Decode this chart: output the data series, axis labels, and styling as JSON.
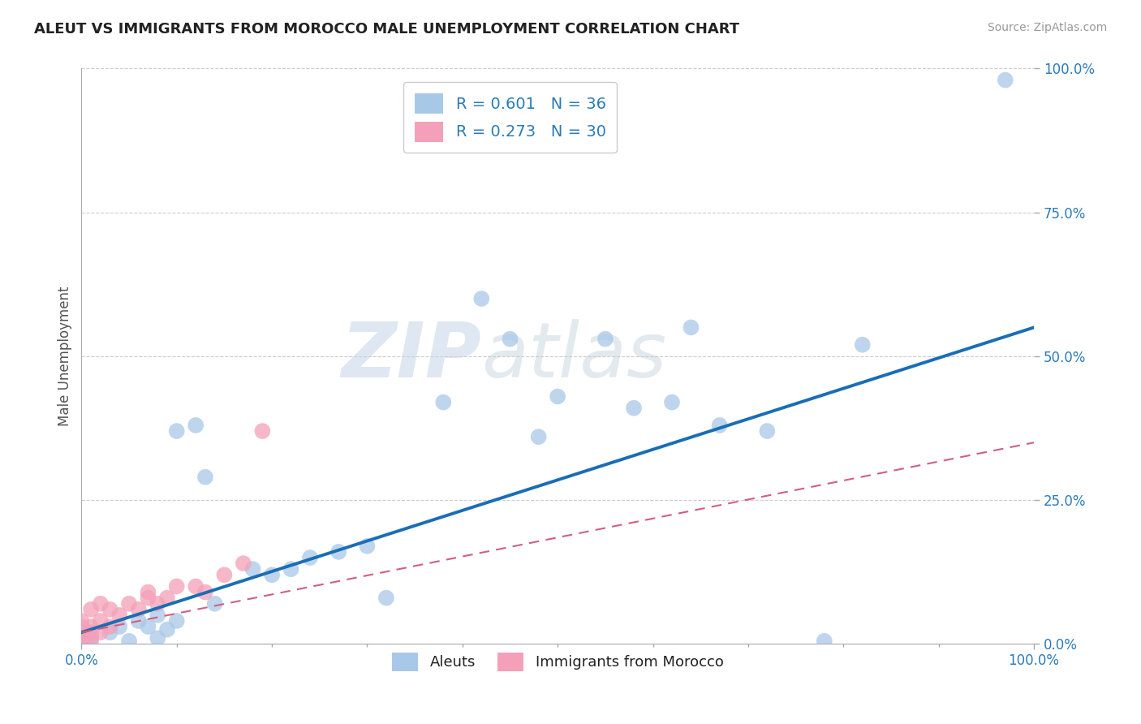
{
  "title": "ALEUT VS IMMIGRANTS FROM MOROCCO MALE UNEMPLOYMENT CORRELATION CHART",
  "source": "Source: ZipAtlas.com",
  "ylabel": "Male Unemployment",
  "xlim": [
    0,
    1.0
  ],
  "ylim": [
    0,
    1.0
  ],
  "ytick_positions": [
    0.0,
    0.25,
    0.5,
    0.75,
    1.0
  ],
  "ytick_labels": [
    "0.0%",
    "25.0%",
    "50.0%",
    "75.0%",
    "100.0%"
  ],
  "grid_color": "#cccccc",
  "background_color": "#ffffff",
  "watermark_zip": "ZIP",
  "watermark_atlas": "atlas",
  "legend1_color": "#a8c8e8",
  "legend2_color": "#f4a0b8",
  "trendline1_color": "#1a6db5",
  "trendline2_color": "#d06080",
  "bottom_legend1": "Aleuts",
  "bottom_legend2": "Immigrants from Morocco",
  "legend1_label": "R = 0.601   N = 36",
  "legend2_label": "R = 0.273   N = 30",
  "aleuts_x": [
    0.01,
    0.01,
    0.03,
    0.04,
    0.05,
    0.06,
    0.07,
    0.08,
    0.08,
    0.09,
    0.1,
    0.1,
    0.12,
    0.13,
    0.14,
    0.18,
    0.2,
    0.22,
    0.24,
    0.27,
    0.3,
    0.32,
    0.38,
    0.42,
    0.45,
    0.48,
    0.5,
    0.55,
    0.58,
    0.62,
    0.64,
    0.67,
    0.72,
    0.78,
    0.82,
    0.97
  ],
  "aleuts_y": [
    0.005,
    0.01,
    0.02,
    0.03,
    0.005,
    0.04,
    0.03,
    0.01,
    0.05,
    0.025,
    0.37,
    0.04,
    0.38,
    0.29,
    0.07,
    0.13,
    0.12,
    0.13,
    0.15,
    0.16,
    0.17,
    0.08,
    0.42,
    0.6,
    0.53,
    0.36,
    0.43,
    0.53,
    0.41,
    0.42,
    0.55,
    0.38,
    0.37,
    0.005,
    0.52,
    0.98
  ],
  "morocco_x": [
    0.0,
    0.0,
    0.0,
    0.0,
    0.0,
    0.0,
    0.0,
    0.005,
    0.01,
    0.01,
    0.01,
    0.01,
    0.02,
    0.02,
    0.02,
    0.03,
    0.03,
    0.04,
    0.05,
    0.06,
    0.07,
    0.07,
    0.08,
    0.09,
    0.1,
    0.12,
    0.13,
    0.15,
    0.17,
    0.19
  ],
  "morocco_y": [
    0.0,
    0.005,
    0.01,
    0.02,
    0.03,
    0.04,
    0.005,
    0.02,
    0.01,
    0.02,
    0.03,
    0.06,
    0.02,
    0.04,
    0.07,
    0.03,
    0.06,
    0.05,
    0.07,
    0.06,
    0.08,
    0.09,
    0.07,
    0.08,
    0.1,
    0.1,
    0.09,
    0.12,
    0.14,
    0.37
  ],
  "trendline1_x": [
    0.0,
    1.0
  ],
  "trendline1_y": [
    0.02,
    0.55
  ],
  "trendline2_x": [
    0.0,
    1.0
  ],
  "trendline2_y": [
    0.02,
    0.35
  ]
}
